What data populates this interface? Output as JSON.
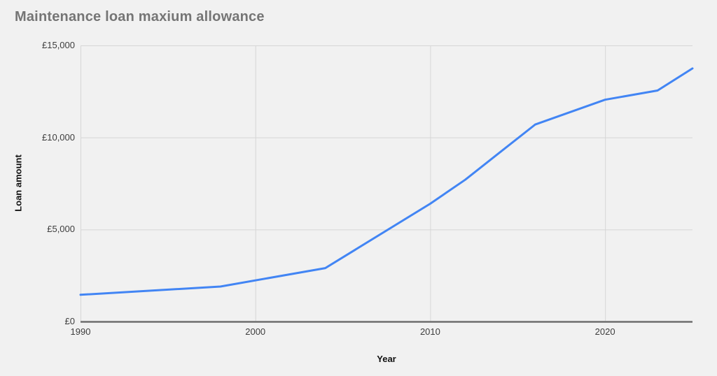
{
  "title": "Maintenance loan maxium allowance",
  "colors": {
    "background": "#f1f1f1",
    "series_line": "#4285f4",
    "gridline": "#d6d6d6",
    "axis_line": "#6e6e6e",
    "title_text": "#757575",
    "tick_text": "#3d3d3d",
    "axis_title_text": "#111111"
  },
  "chart_data": {
    "type": "line",
    "title": "Maintenance loan maxium allowance",
    "xlabel": "Year",
    "ylabel": "Loan amount",
    "xlim": [
      1990,
      2025
    ],
    "ylim": [
      0,
      15000
    ],
    "grid": true,
    "legend": "none",
    "x_ticks": [
      {
        "value": 1990,
        "label": "1990"
      },
      {
        "value": 2000,
        "label": "2000"
      },
      {
        "value": 2010,
        "label": "2010"
      },
      {
        "value": 2020,
        "label": "2020"
      }
    ],
    "y_ticks": [
      {
        "value": 0,
        "label": "£0"
      },
      {
        "value": 5000,
        "label": "£5,000"
      },
      {
        "value": 10000,
        "label": "£10,000"
      },
      {
        "value": 15000,
        "label": "£15,000"
      }
    ],
    "x": [
      1990,
      1998,
      2004,
      2010,
      2012,
      2014,
      2016,
      2020,
      2023,
      2025
    ],
    "series": [
      {
        "name": "Maintenance loan maximum allowance",
        "values": [
          1450,
          1900,
          2900,
          6400,
          7700,
          9200,
          10700,
          12050,
          12550,
          13750
        ]
      }
    ]
  }
}
